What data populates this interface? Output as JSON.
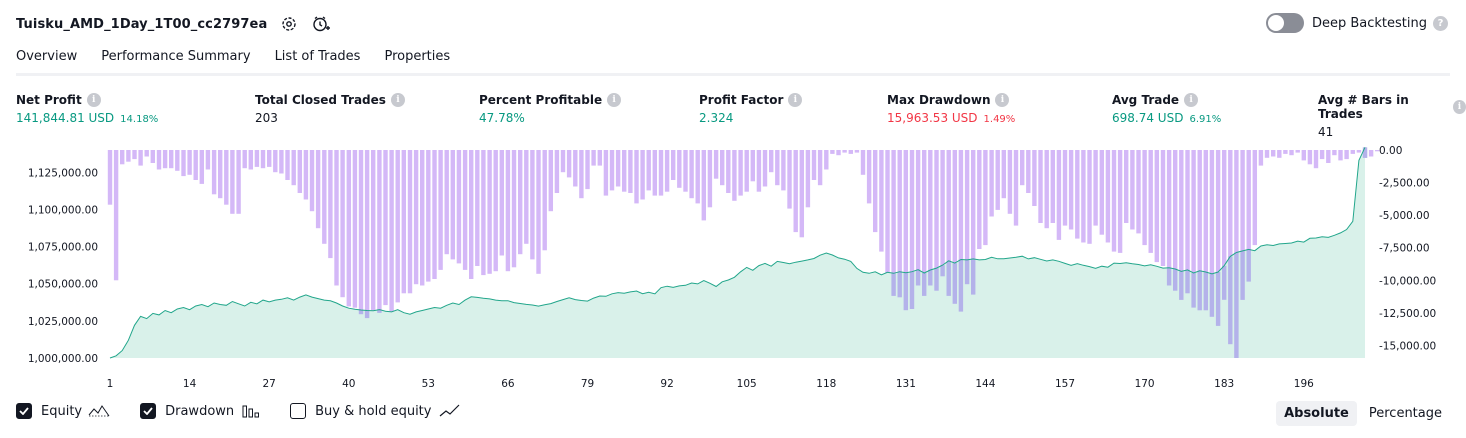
{
  "header": {
    "strategy_name": "Tuisku_AMD_1Day_1T00_cc2797ea",
    "deep_backtesting_label": "Deep Backtesting",
    "deep_backtesting_enabled": false
  },
  "tabs": [
    {
      "label": "Overview",
      "active": true
    },
    {
      "label": "Performance Summary",
      "active": false
    },
    {
      "label": "List of Trades",
      "active": false
    },
    {
      "label": "Properties",
      "active": false
    }
  ],
  "metrics": [
    {
      "label": "Net Profit",
      "value": "141,844.81 USD",
      "pct": "14.18%",
      "color": "green"
    },
    {
      "label": "Total Closed Trades",
      "value": "203",
      "pct": "",
      "color": "dark"
    },
    {
      "label": "Percent Profitable",
      "value": "47.78%",
      "pct": "",
      "color": "green"
    },
    {
      "label": "Profit Factor",
      "value": "2.324",
      "pct": "",
      "color": "green"
    },
    {
      "label": "Max Drawdown",
      "value": "15,963.53 USD",
      "pct": "1.49%",
      "color": "red"
    },
    {
      "label": "Avg Trade",
      "value": "698.74 USD",
      "pct": "6.91%",
      "color": "green"
    },
    {
      "label": "Avg # Bars in Trades",
      "value": "41",
      "pct": "",
      "color": "dark"
    }
  ],
  "colors": {
    "equity_line": "#22a68b",
    "equity_fill": "#d9f1ea",
    "drawdown_bar": "#d4b8f7",
    "drawdown_overlap": "#b4b2ea",
    "positive": "#089981",
    "negative": "#f23645"
  },
  "chart_data": {
    "type": "line+bar",
    "x_ticks": [
      "1",
      "14",
      "27",
      "40",
      "53",
      "66",
      "79",
      "92",
      "105",
      "118",
      "131",
      "144",
      "157",
      "170",
      "183",
      "196"
    ],
    "equity_ticks": [
      "1,125,000.00",
      "1,100,000.00",
      "1,075,000.00",
      "1,050,000.00",
      "1,025,000.00",
      "1,000,000.00"
    ],
    "equity_ylim": [
      1000000,
      1140000
    ],
    "drawdown_ticks": [
      "0.00",
      "-2,500.00",
      "-5,000.00",
      "-7,500.00",
      "-10,000.00",
      "-12,500.00",
      "-15,000.00"
    ],
    "drawdown_ylim": [
      -15963.53,
      0
    ],
    "series": [
      {
        "name": "Equity",
        "axis": "left",
        "values": [
          1000000,
          1001500,
          1005000,
          1012000,
          1022000,
          1028000,
          1026500,
          1030000,
          1029000,
          1032000,
          1030500,
          1033000,
          1034000,
          1032500,
          1035000,
          1036000,
          1034500,
          1037000,
          1036000,
          1035500,
          1038000,
          1036500,
          1035000,
          1037500,
          1036500,
          1039000,
          1037800,
          1039000,
          1039500,
          1040500,
          1039000,
          1041000,
          1042500,
          1041000,
          1040000,
          1039000,
          1038500,
          1037000,
          1035000,
          1033500,
          1032800,
          1032300,
          1032000,
          1031800,
          1032600,
          1031500,
          1031000,
          1032500,
          1030500,
          1029500,
          1031000,
          1032000,
          1033000,
          1034000,
          1033500,
          1035500,
          1037000,
          1036000,
          1039000,
          1041200,
          1040800,
          1040200,
          1039800,
          1039000,
          1038500,
          1038600,
          1037300,
          1036700,
          1036100,
          1035700,
          1034900,
          1035900,
          1036600,
          1038000,
          1039300,
          1040500,
          1039300,
          1038700,
          1038300,
          1040300,
          1041700,
          1041500,
          1043200,
          1044000,
          1043600,
          1044500,
          1045100,
          1043300,
          1044200,
          1043200,
          1047300,
          1048300,
          1047500,
          1048500,
          1048900,
          1050500,
          1049900,
          1052100,
          1050300,
          1048100,
          1051300,
          1052500,
          1054300,
          1058000,
          1061000,
          1059000,
          1062200,
          1063700,
          1061800,
          1065000,
          1064300,
          1063500,
          1064500,
          1065200,
          1066000,
          1067000,
          1069200,
          1070700,
          1069300,
          1067400,
          1066500,
          1065000,
          1060300,
          1057700,
          1057000,
          1058000,
          1056000,
          1057700,
          1057000,
          1058100,
          1057400,
          1058100,
          1059400,
          1057200,
          1059200,
          1060500,
          1062500,
          1065400,
          1063900,
          1066300,
          1066000,
          1066700,
          1066000,
          1066300,
          1067800,
          1066800,
          1066800,
          1067300,
          1067800,
          1068500,
          1066700,
          1067500,
          1066400,
          1065300,
          1066000,
          1065100,
          1063700,
          1062300,
          1063500,
          1062400,
          1061500,
          1060400,
          1061800,
          1061100,
          1063900,
          1063600,
          1064100,
          1063400,
          1062900,
          1062000,
          1062700,
          1061700,
          1060500,
          1060800,
          1059900,
          1058300,
          1059300,
          1057200,
          1058700,
          1057900,
          1056700,
          1057900,
          1062100,
          1068400,
          1071000,
          1072100,
          1073100,
          1072200,
          1075400,
          1076200,
          1075700,
          1076800,
          1077100,
          1077400,
          1078700,
          1078000,
          1080600,
          1080800,
          1081600,
          1081200,
          1082600,
          1084200,
          1086500,
          1092000,
          1133000,
          1141845
        ]
      },
      {
        "name": "Drawdown",
        "axis": "right",
        "values": [
          -4200,
          -10000,
          -1100,
          -900,
          -700,
          -1200,
          -500,
          -1000,
          -1500,
          -1400,
          -1400,
          -1600,
          -2000,
          -1900,
          -2300,
          -2600,
          -1500,
          -3400,
          -3700,
          -4200,
          -4900,
          -4900,
          -1400,
          -1500,
          -1300,
          -1400,
          -1300,
          -1700,
          -1800,
          -2300,
          -2700,
          -3300,
          -3800,
          -4700,
          -6000,
          -7200,
          -8300,
          -10400,
          -11300,
          -12000,
          -12100,
          -12600,
          -12900,
          -12300,
          -12500,
          -11900,
          -12400,
          -11700,
          -11000,
          -11000,
          -10300,
          -10400,
          -10100,
          -9900,
          -9200,
          -8000,
          -8400,
          -8700,
          -9200,
          -9900,
          -8900,
          -9600,
          -9500,
          -9300,
          -8100,
          -9300,
          -9000,
          -8000,
          -7200,
          -8400,
          -9500,
          -7700,
          -4700,
          -3300,
          -1700,
          -2100,
          -2800,
          -3700,
          -3000,
          -1200,
          -1200,
          -3500,
          -3100,
          -2800,
          -3200,
          -3300,
          -4100,
          -3800,
          -3100,
          -3500,
          -3500,
          -3200,
          -2300,
          -2900,
          -3200,
          -3700,
          -4100,
          -5400,
          -4400,
          -2200,
          -2700,
          -3300,
          -3900,
          -3500,
          -3200,
          -2400,
          -3200,
          -2800,
          -1700,
          -2700,
          -3100,
          -4500,
          -6300,
          -6700,
          -4400,
          -2300,
          -2700,
          -1500,
          -300,
          -400,
          -200,
          -300,
          -200,
          -1900,
          -4100,
          -6300,
          -7800,
          -9400,
          -11200,
          -11300,
          -12300,
          -12200,
          -10400,
          -11200,
          -10400,
          -10800,
          -9700,
          -11200,
          -11800,
          -12400,
          -10300,
          -11100,
          -7600,
          -7300,
          -5100,
          -4600,
          -3700,
          -4900,
          -5800,
          -2700,
          -3300,
          -4300,
          -5600,
          -6000,
          -5600,
          -6900,
          -5800,
          -6100,
          -6800,
          -7100,
          -7200,
          -5800,
          -6500,
          -7100,
          -7800,
          -7900,
          -5600,
          -6100,
          -6400,
          -7300,
          -7900,
          -8600,
          -8900,
          -10400,
          -10800,
          -11500,
          -11000,
          -12100,
          -12300,
          -12300,
          -12800,
          -13500,
          -11500,
          -14900,
          -15964,
          -11500,
          -10100,
          -7300,
          -1200,
          -600,
          -500,
          -600,
          -300,
          -400,
          -200,
          -800,
          -1100,
          -1400,
          -700,
          -1000,
          -400,
          -800,
          -700,
          -300,
          -200,
          -600,
          -500,
          -100
        ]
      }
    ],
    "legend": [
      {
        "label": "Equity",
        "checked": true
      },
      {
        "label": "Drawdown",
        "checked": true
      },
      {
        "label": "Buy & hold equity",
        "checked": false
      }
    ]
  },
  "modes": [
    {
      "label": "Absolute",
      "active": true
    },
    {
      "label": "Percentage",
      "active": false
    }
  ]
}
